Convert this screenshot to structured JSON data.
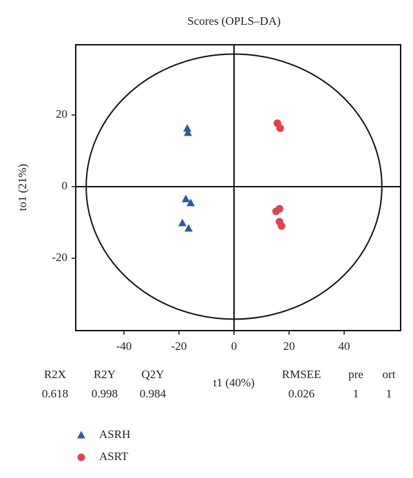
{
  "chart_data": {
    "type": "scatter",
    "title": "Scores (OPLS–DA)",
    "x_label": "t1 (40%)",
    "y_label": "to1 (21%)",
    "xlim": [
      -57.5,
      60.5
    ],
    "ylim": [
      -40.2,
      39.6
    ],
    "xticks": [
      -40,
      -20,
      0,
      20,
      40
    ],
    "yticks": [
      -20,
      0,
      20
    ],
    "ellipse_radii": [
      53.7,
      37
    ],
    "series": [
      {
        "name": "ASRH",
        "color": "#2e5a9c",
        "marker": "triangle",
        "x": [
          -17,
          -16.75,
          -17.5,
          -15.75,
          -18.75,
          -16.5
        ],
        "values": [
          16.2,
          15,
          -3.5,
          -4.6,
          -10.2,
          -11.7
        ]
      },
      {
        "name": "ASRT",
        "color": "#e0434f",
        "marker": "circle",
        "x": [
          15.75,
          16.75,
          15.25,
          16.5,
          16.5,
          17.25
        ],
        "values": [
          17.7,
          16.3,
          -6.9,
          -6.2,
          -9.8,
          -11
        ]
      }
    ],
    "summary": [
      {
        "label": "R2X",
        "value": 0.618
      },
      {
        "label": "R2Y",
        "value": 0.998
      },
      {
        "label": "Q2Y",
        "value": 0.984
      },
      {
        "label": "RMSEE",
        "value": 0.026
      },
      {
        "label": "pre",
        "value": 1
      },
      {
        "label": "ort",
        "value": 1
      }
    ]
  }
}
